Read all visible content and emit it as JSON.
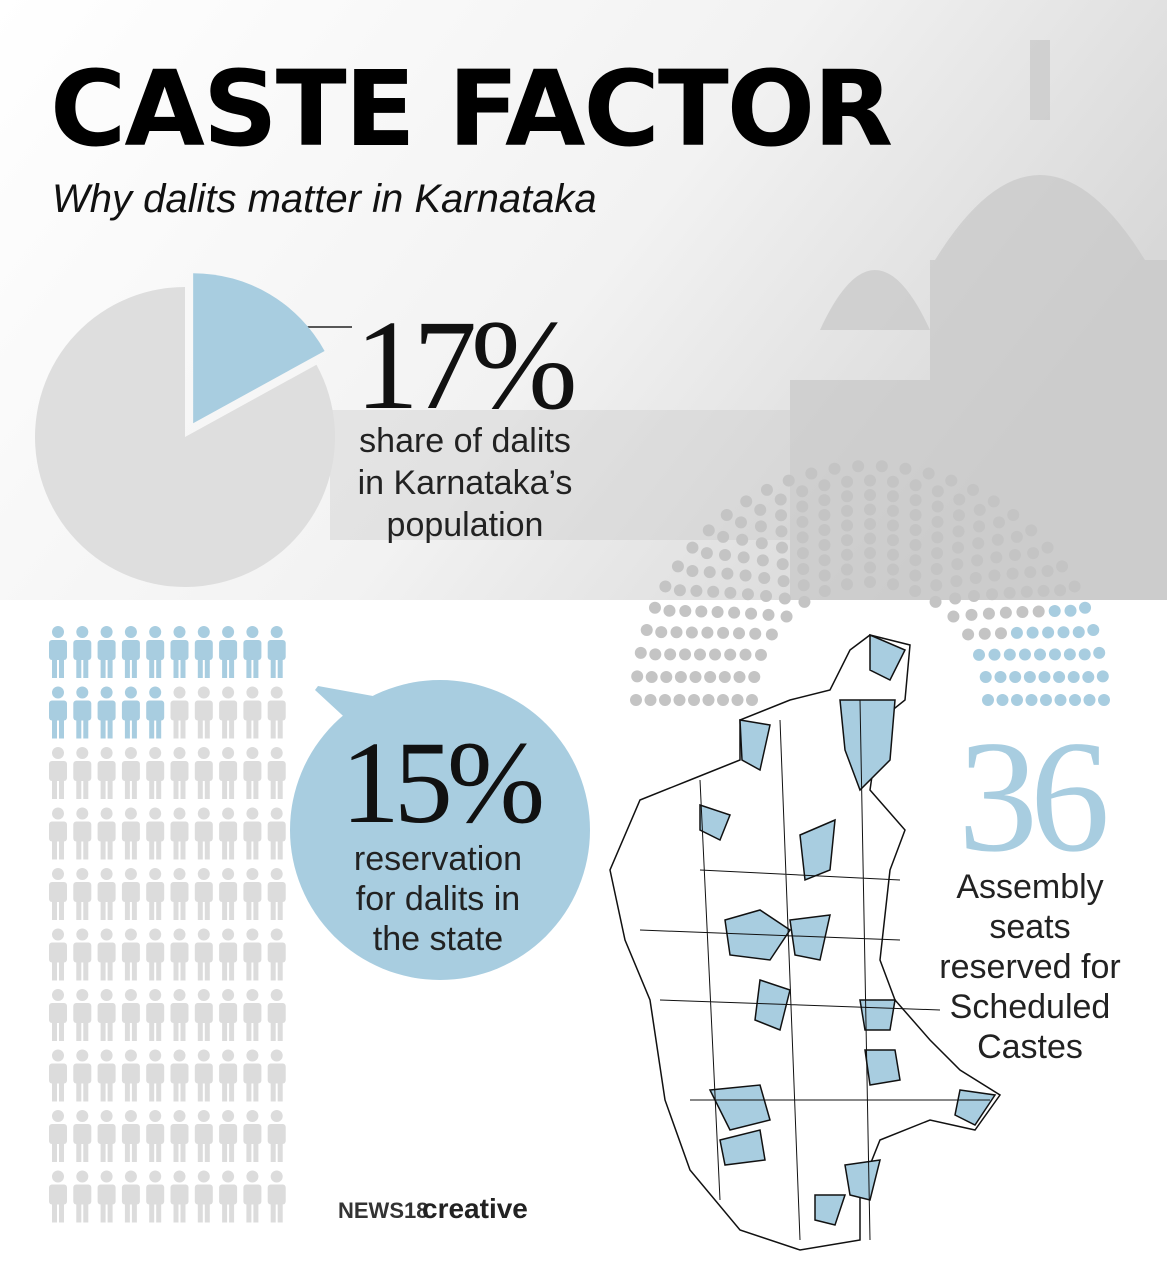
{
  "header": {
    "title": "CASTE FACTOR",
    "subtitle": "Why dalits matter in Karnataka"
  },
  "chart_data": [
    {
      "type": "pie",
      "values": [
        17,
        83
      ],
      "value_labels": [
        "17%",
        null
      ],
      "colors": [
        "#a8cde0",
        "#dedede"
      ],
      "caption": [
        "share of dalits",
        "in Karnataka’s",
        "population"
      ]
    },
    {
      "type": "pictogram",
      "value": 15,
      "value_label": "15%",
      "total": 100,
      "columns": 10,
      "colors": [
        "#a8cde0",
        "#dcdcdc"
      ],
      "caption": [
        "reservation",
        "for dalits in",
        "the state"
      ]
    },
    {
      "type": "parliament",
      "value": 36,
      "total": 224,
      "rows": 9,
      "colors": [
        "#a8cde0",
        "#c4c4c4"
      ],
      "caption": [
        "Assembly",
        "seats",
        "reserved for",
        "Scheduled",
        "Castes"
      ]
    }
  ],
  "footer": {
    "brand": "NEWS18",
    "label": "creative"
  }
}
